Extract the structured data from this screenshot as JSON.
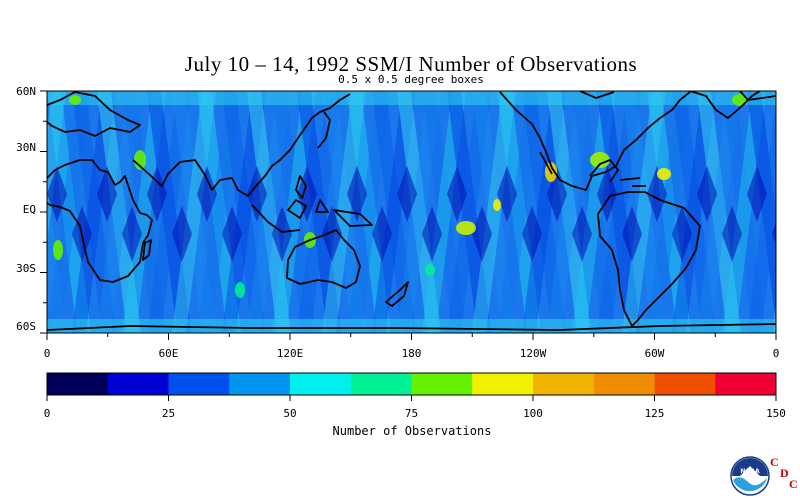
{
  "title": "July 10 – 14, 1992 SSM/I Number of Observations",
  "subtitle": "0.5 x 0.5 degree boxes",
  "lat_labels": [
    "60N",
    "30N",
    "EQ",
    "30S",
    "60S"
  ],
  "lon_labels": [
    "0",
    "60E",
    "120E",
    "180",
    "120W",
    "60W",
    "0"
  ],
  "colorbar": {
    "title": "Number of Observations",
    "tick_labels": [
      "0",
      "25",
      "50",
      "75",
      "100",
      "125",
      "150"
    ],
    "colors": [
      "#00005a",
      "#0000d2",
      "#0050f0",
      "#0096f0",
      "#00f0f0",
      "#00f096",
      "#64f000",
      "#f0f000",
      "#f0b400",
      "#f08c00",
      "#f05000",
      "#f00032"
    ]
  },
  "logo": {
    "icon": "noaa-logo-icon",
    "text": "NOAA",
    "letters": [
      "C",
      "D",
      "C"
    ]
  }
}
